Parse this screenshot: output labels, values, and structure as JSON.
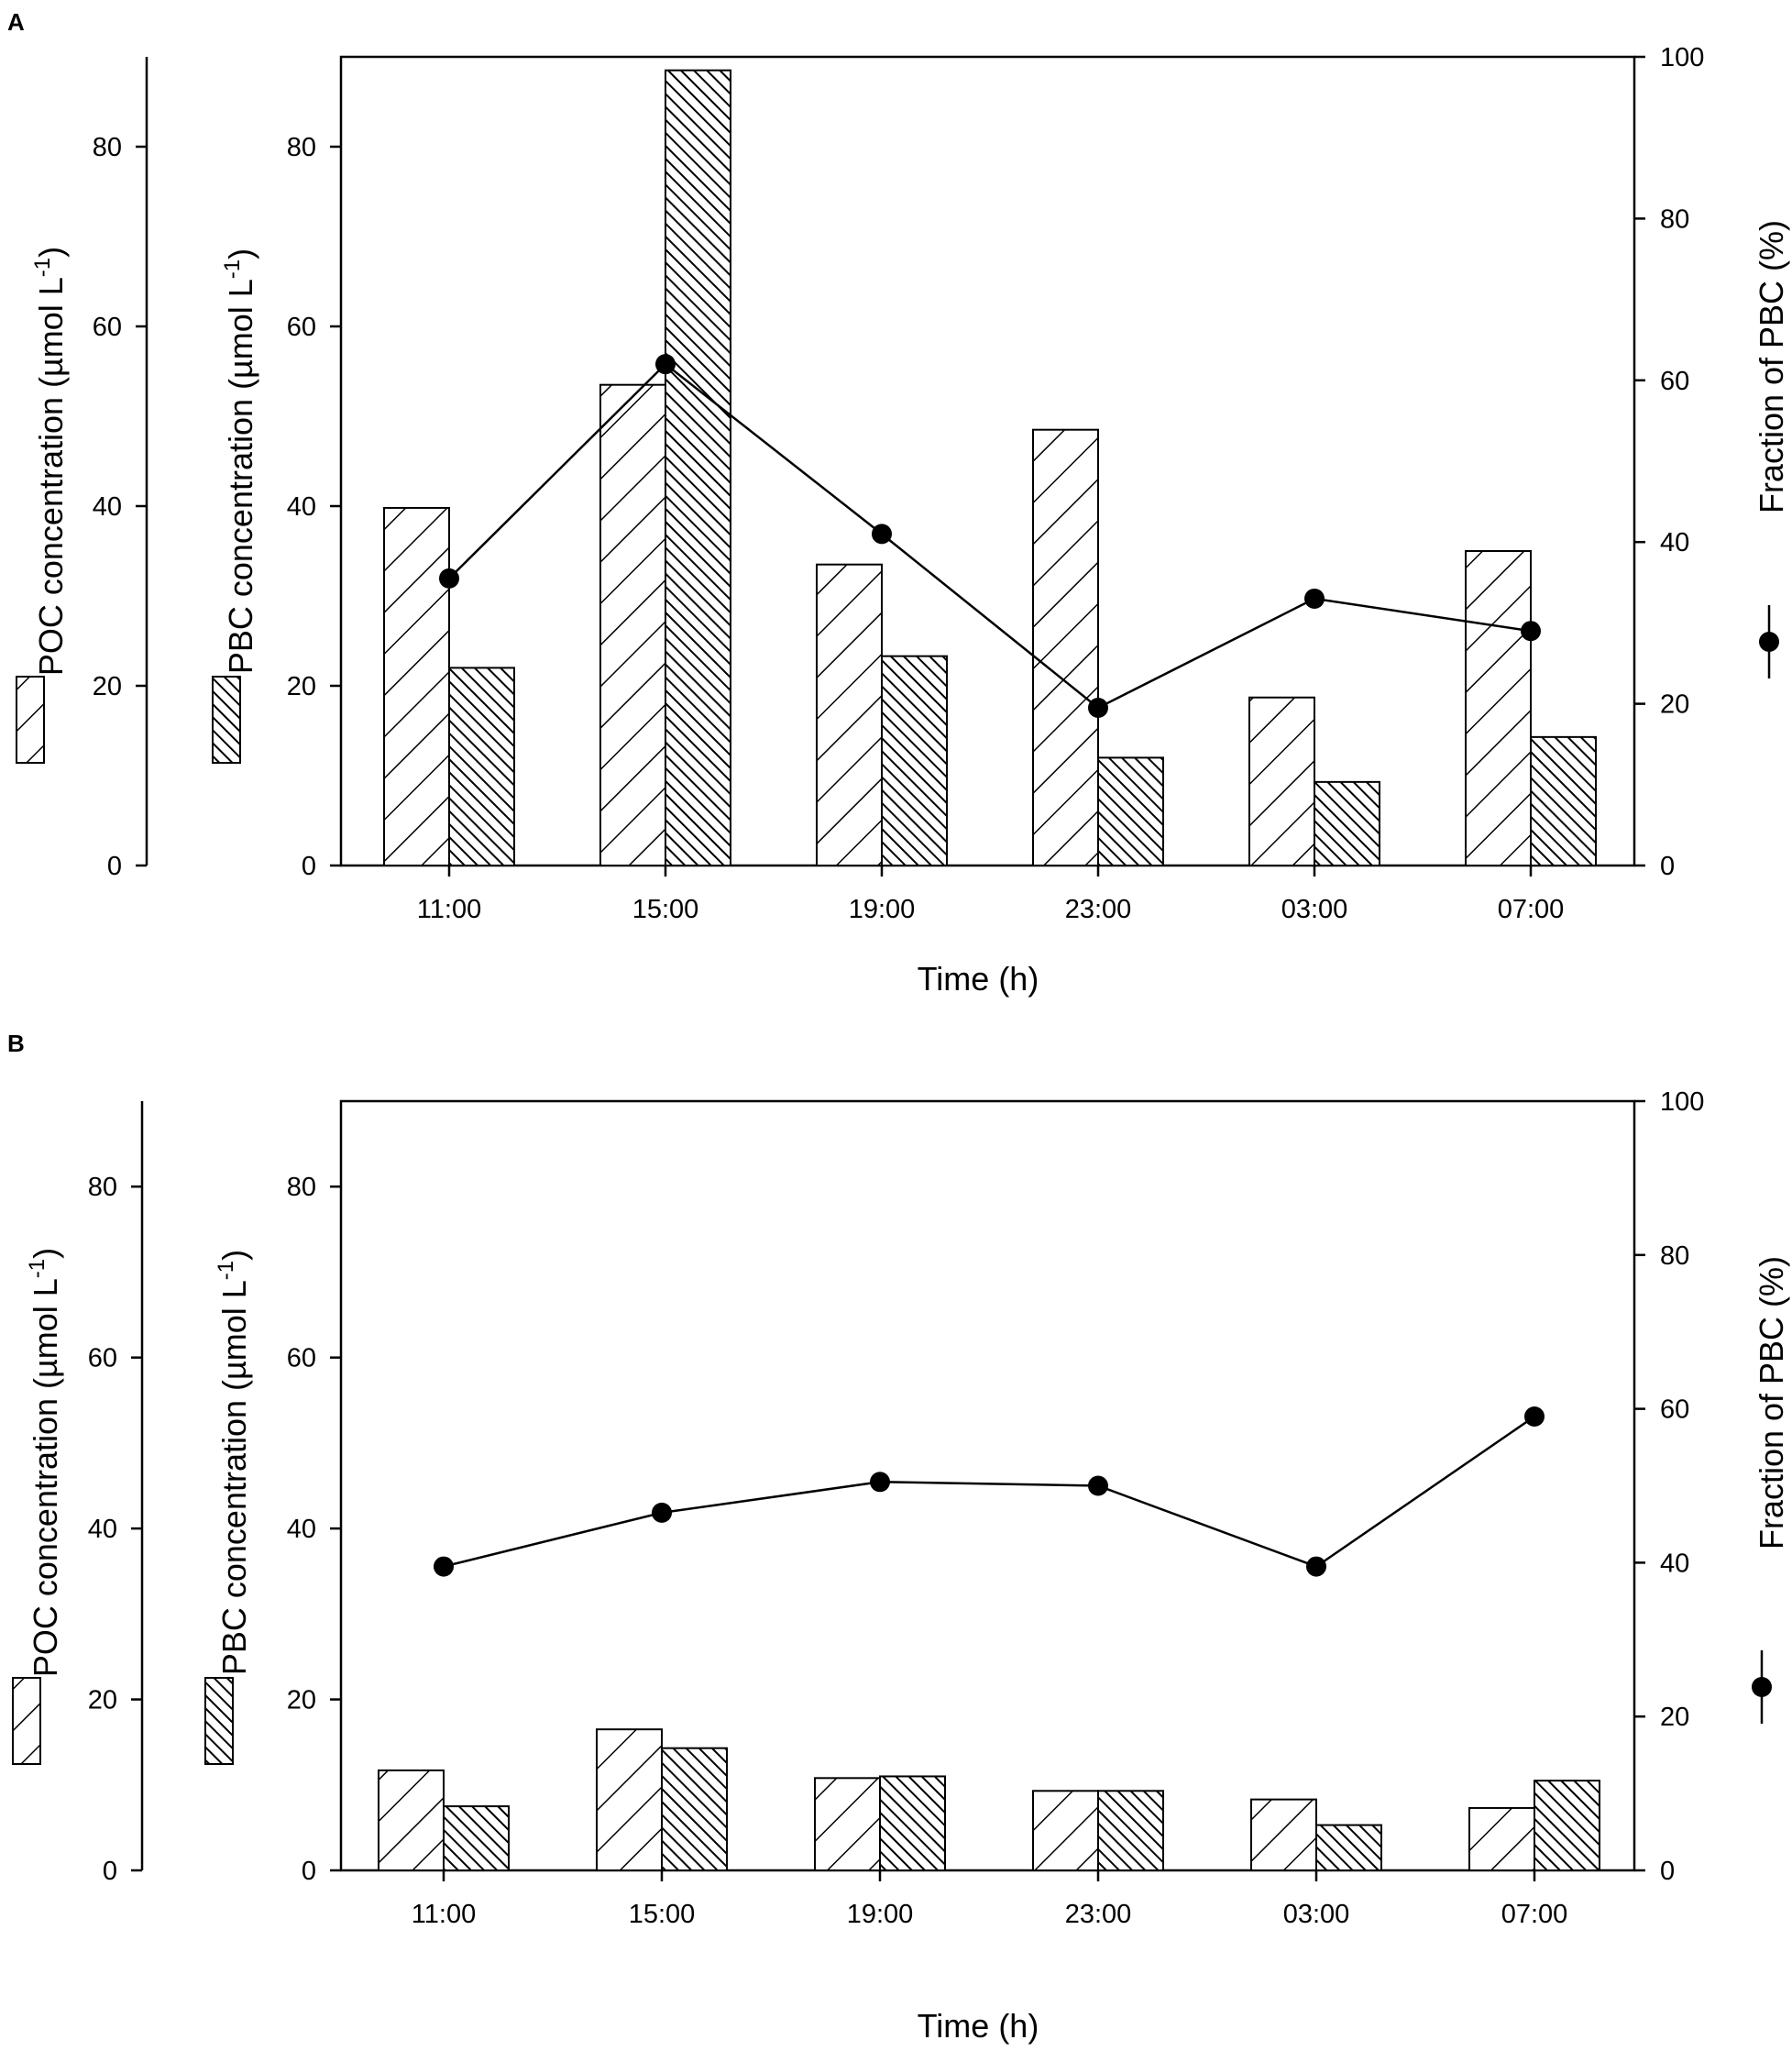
{
  "chart_data": [
    {
      "type": "bar",
      "panel": "A",
      "categories": [
        "11:00",
        "15:00",
        "19:00",
        "23:00",
        "03:00",
        "07:00"
      ],
      "series": [
        {
          "name": "POC",
          "axis": "POC concentration (µmol L-1)",
          "values": [
            39.8,
            53.5,
            33.5,
            48.5,
            18.7,
            35.0
          ]
        },
        {
          "name": "PBC",
          "axis": "PBC concentration (µmol L-1)",
          "values": [
            22.0,
            88.5,
            23.3,
            12.0,
            9.3,
            14.3
          ]
        },
        {
          "name": "Fraction of PBC",
          "kind": "line",
          "unit": "%",
          "values": [
            35.5,
            62.0,
            41.0,
            19.5,
            33.0,
            29.0
          ]
        }
      ],
      "ylim": [
        0,
        90
      ],
      "yticks": [
        0,
        20,
        40,
        60,
        80
      ],
      "y2lim": [
        0,
        100
      ],
      "y2ticks": [
        0,
        20,
        40,
        60,
        80,
        100
      ],
      "xlabel": "Time (h)",
      "poc_label": "POC concentration (µmol L",
      "pbc_label": "PBC concentration (µmol L",
      "conc_sup": "-1",
      "conc_close": ")",
      "y2label": "Fraction of PBC (%)"
    },
    {
      "type": "bar",
      "panel": "B",
      "categories": [
        "11:00",
        "15:00",
        "19:00",
        "23:00",
        "03:00",
        "07:00"
      ],
      "series": [
        {
          "name": "POC",
          "axis": "POC concentration (µmol L-1)",
          "values": [
            11.7,
            16.5,
            10.8,
            9.3,
            8.3,
            7.3
          ]
        },
        {
          "name": "PBC",
          "axis": "PBC concentration (µmol L-1)",
          "values": [
            7.5,
            14.3,
            11.0,
            9.3,
            5.3,
            10.5
          ]
        },
        {
          "name": "Fraction of PBC",
          "kind": "line",
          "unit": "%",
          "values": [
            39.5,
            46.5,
            50.5,
            50.0,
            39.5,
            59.0
          ]
        }
      ],
      "ylim": [
        0,
        90
      ],
      "yticks": [
        0,
        20,
        40,
        60,
        80
      ],
      "y2lim": [
        0,
        100
      ],
      "y2ticks": [
        0,
        20,
        40,
        60,
        80,
        100
      ],
      "xlabel": "Time (h)",
      "poc_label": "POC concentration (µmol L",
      "pbc_label": "PBC concentration (µmol L",
      "conc_sup": "-1",
      "conc_close": ")",
      "y2label": "Fraction of PBC (%)"
    }
  ]
}
